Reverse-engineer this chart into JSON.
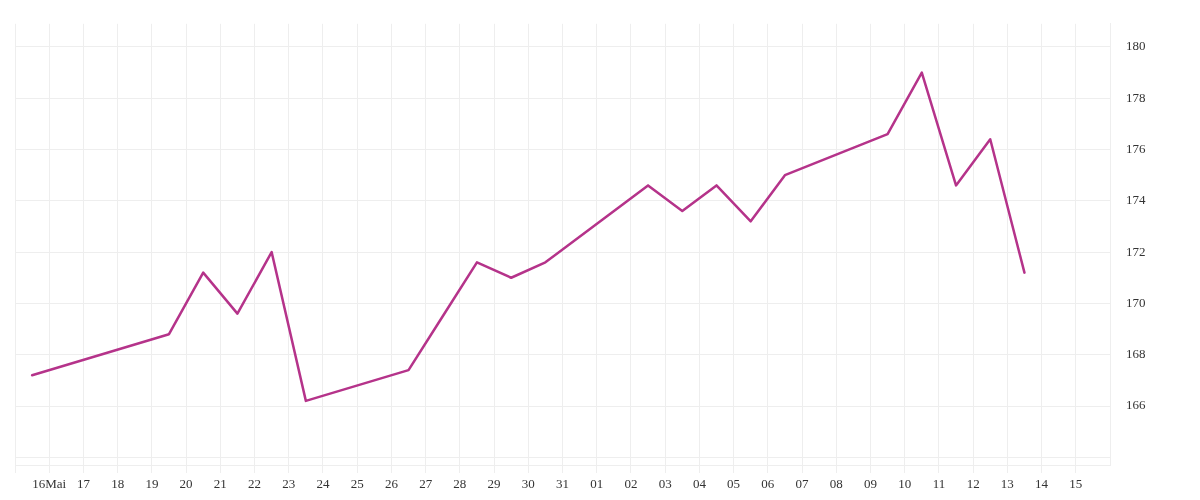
{
  "chart_data": {
    "type": "line",
    "x": [
      "--05-15T12:00",
      "--05-19T12:00",
      "--05-20T12:00",
      "--05-21T12:00",
      "--05-22T12:00",
      "--05-23T12:00",
      "--05-26T12:00",
      "--05-27T12:00",
      "--05-28T12:00",
      "--05-29T12:00",
      "--05-30T12:00",
      "--06-02T12:00",
      "--06-03T12:00",
      "--06-04T12:00",
      "--06-05T12:00",
      "--06-06T12:00",
      "--06-09T12:00",
      "--06-10T12:00",
      "--06-11T12:00",
      "--06-12T12:00",
      "--06-13T12:00"
    ],
    "series": [
      {
        "color": "#b5338a",
        "values": [
          167.2,
          168.8,
          171.2,
          169.6,
          172.0,
          166.2,
          167.4,
          169.5,
          171.6,
          171.0,
          171.6,
          174.6,
          173.6,
          174.6,
          173.2,
          175.0,
          176.6,
          179.0,
          174.6,
          176.4,
          171.2
        ]
      }
    ],
    "xlim": [
      "--05-15",
      "--06-16"
    ],
    "xticks": [
      {
        "value": "--05-15",
        "label": null
      },
      {
        "value": "--05-16",
        "label": "16Mai"
      },
      {
        "value": "--05-17",
        "label": "17"
      },
      {
        "value": "--05-18",
        "label": "18"
      },
      {
        "value": "--05-19",
        "label": "19"
      },
      {
        "value": "--05-20",
        "label": "20"
      },
      {
        "value": "--05-21",
        "label": "21"
      },
      {
        "value": "--05-22",
        "label": "22"
      },
      {
        "value": "--05-23",
        "label": "23"
      },
      {
        "value": "--05-24",
        "label": "24"
      },
      {
        "value": "--05-25",
        "label": "25"
      },
      {
        "value": "--05-26",
        "label": "26"
      },
      {
        "value": "--05-27",
        "label": "27"
      },
      {
        "value": "--05-28",
        "label": "28"
      },
      {
        "value": "--05-29",
        "label": "29"
      },
      {
        "value": "--05-30",
        "label": "30"
      },
      {
        "value": "--05-31",
        "label": "31"
      },
      {
        "value": "--06-01",
        "label": "01"
      },
      {
        "value": "--06-02",
        "label": "02"
      },
      {
        "value": "--06-03",
        "label": "03"
      },
      {
        "value": "--06-04",
        "label": "04"
      },
      {
        "value": "--06-05",
        "label": "05"
      },
      {
        "value": "--06-06",
        "label": "06"
      },
      {
        "value": "--06-07",
        "label": "07"
      },
      {
        "value": "--06-08",
        "label": "08"
      },
      {
        "value": "--06-09",
        "label": "09"
      },
      {
        "value": "--06-10",
        "label": "10"
      },
      {
        "value": "--06-11",
        "label": "11"
      },
      {
        "value": "--06-12",
        "label": "12"
      },
      {
        "value": "--06-13",
        "label": "13"
      },
      {
        "value": "--06-14",
        "label": "14"
      },
      {
        "value": "--06-15",
        "label": "15"
      }
    ],
    "ylim": [
      163.7,
      180.9
    ],
    "yticks": [
      {
        "value": 164,
        "label": null
      },
      166,
      168,
      170,
      172,
      174,
      176,
      178,
      180
    ],
    "grid": true,
    "legend": false,
    "marker": "none",
    "line_style": "solid"
  }
}
